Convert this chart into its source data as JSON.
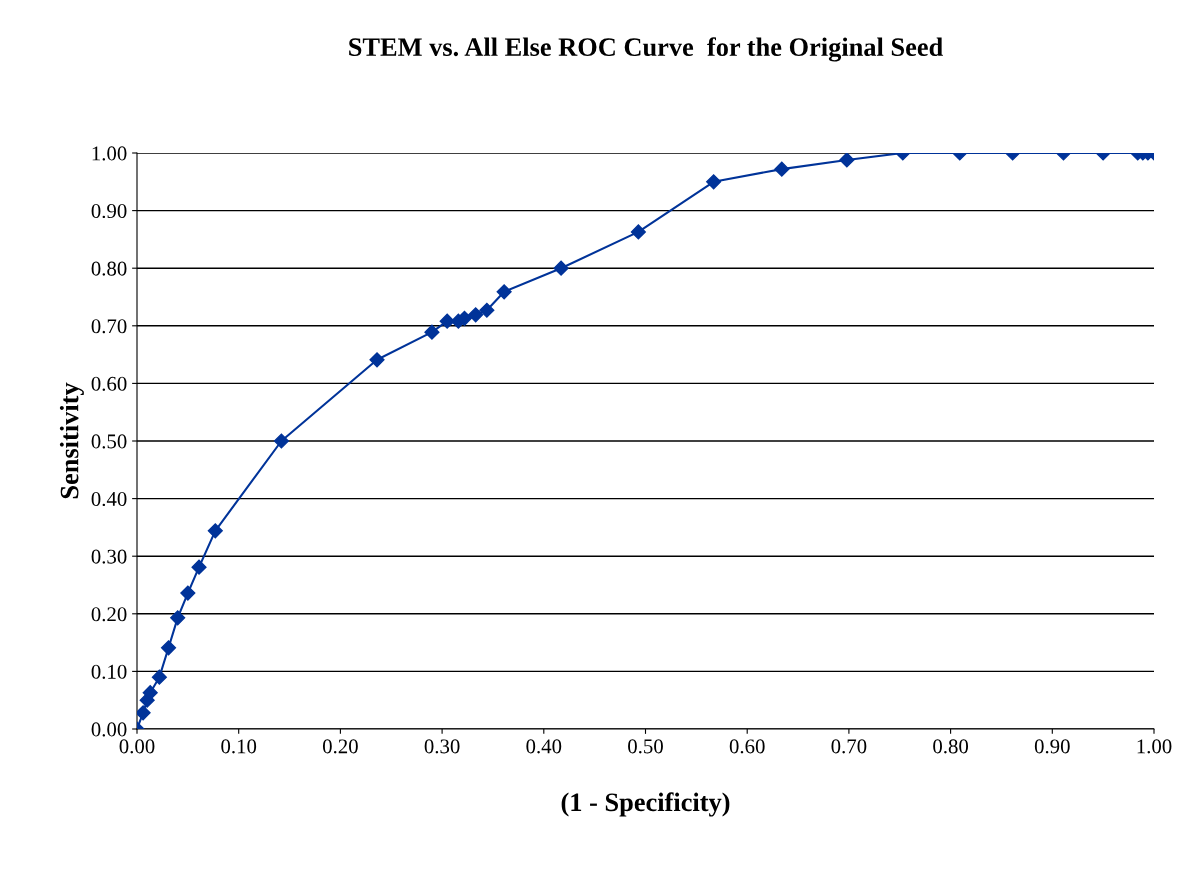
{
  "chart_data": {
    "type": "line",
    "title": "STEM vs. All Else ROC Curve  for the Original Seed",
    "xlabel": "(1 - Specificity)",
    "ylabel": "Sensitivity",
    "series": [
      {
        "color": "#003399",
        "marker": "diamond",
        "line_style": "solid",
        "x": [
          0,
          0.006,
          0.01,
          0.013,
          0.022,
          0.031,
          0.04,
          0.05,
          0.061,
          0.077,
          0.142,
          0.236,
          0.29,
          0.305,
          0.316,
          0.322,
          0.333,
          0.344,
          0.361,
          0.417,
          0.493,
          0.567,
          0.634,
          0.698,
          0.753,
          0.809,
          0.861,
          0.911,
          0.95,
          0.984,
          0.989,
          0.994,
          1.0
        ],
        "values": [
          0,
          0.028,
          0.05,
          0.063,
          0.09,
          0.141,
          0.193,
          0.236,
          0.281,
          0.344,
          0.5,
          0.641,
          0.689,
          0.708,
          0.708,
          0.713,
          0.719,
          0.727,
          0.759,
          0.8,
          0.863,
          0.95,
          0.972,
          0.988,
          1.0,
          1.0,
          1.0,
          1.0,
          1.0,
          1.0,
          1.0,
          1.0,
          1.0
        ]
      }
    ],
    "xlim": [
      0,
      1
    ],
    "ylim": [
      0,
      1
    ],
    "xticks": [
      {
        "value": 0,
        "label": "0.00"
      },
      {
        "value": 0.1,
        "label": "0.10"
      },
      {
        "value": 0.2,
        "label": "0.20"
      },
      {
        "value": 0.3,
        "label": "0.30"
      },
      {
        "value": 0.4,
        "label": "0.40"
      },
      {
        "value": 0.5,
        "label": "0.50"
      },
      {
        "value": 0.6,
        "label": "0.60"
      },
      {
        "value": 0.7,
        "label": "0.70"
      },
      {
        "value": 0.8,
        "label": "0.80"
      },
      {
        "value": 0.9,
        "label": "0.90"
      },
      {
        "value": 1,
        "label": "1.00"
      }
    ],
    "yticks": [
      {
        "value": 0,
        "label": "0.00"
      },
      {
        "value": 0.1,
        "label": "0.10"
      },
      {
        "value": 0.2,
        "label": "0.20"
      },
      {
        "value": 0.3,
        "label": "0.30"
      },
      {
        "value": 0.4,
        "label": "0.40"
      },
      {
        "value": 0.5,
        "label": "0.50"
      },
      {
        "value": 0.6,
        "label": "0.60"
      },
      {
        "value": 0.7,
        "label": "0.70"
      },
      {
        "value": 0.8,
        "label": "0.80"
      },
      {
        "value": 0.9,
        "label": "0.90"
      },
      {
        "value": 1,
        "label": "1.00"
      }
    ],
    "grid": "y",
    "legend": false
  }
}
